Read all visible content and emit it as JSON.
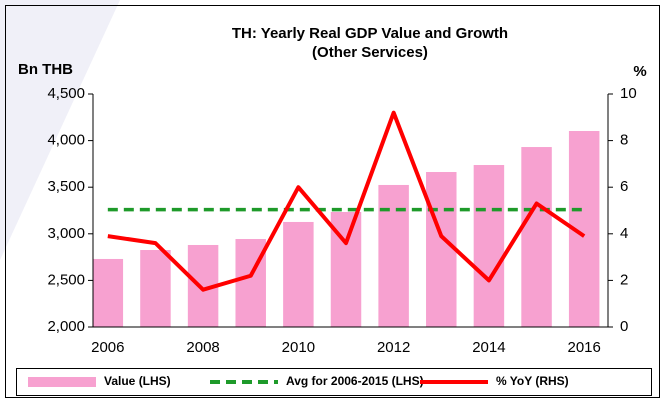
{
  "chart_data": {
    "type": "bar",
    "title": "TH: Yearly Real GDP Value and Growth",
    "subtitle": "(Other Services)",
    "ylabel": "Bn THB",
    "y2label": "%",
    "categories": [
      "2006",
      null,
      "2008",
      null,
      "2010",
      null,
      "2012",
      null,
      "2014",
      null,
      "2016"
    ],
    "series": [
      {
        "name": "Value (LHS)",
        "type": "bar",
        "color": "#f7a1d0",
        "values": [
          2730,
          2826,
          2880,
          2944,
          3127,
          3234,
          3524,
          3663,
          3738,
          3931,
          4103
        ]
      },
      {
        "name": "Avg for 2006-2015 (LHS)",
        "type": "line",
        "dashed": true,
        "color": "#1e9a2a",
        "values": [
          3260,
          3260,
          3260,
          3260,
          3260,
          3260,
          3260,
          3260,
          3260,
          3260,
          3260
        ]
      },
      {
        "name": "% YoY (RHS)",
        "type": "line",
        "axis": "y2",
        "color": "#ff0000",
        "values": [
          3.9,
          3.6,
          1.6,
          2.2,
          6.0,
          3.6,
          9.2,
          3.9,
          2.0,
          5.3,
          3.9
        ]
      }
    ],
    "ylim": [
      2000,
      4500
    ],
    "yticks": [
      {
        "value": 2000,
        "label": "2,000"
      },
      {
        "value": 2500,
        "label": "2,500"
      },
      {
        "value": 3000,
        "label": "3,000"
      },
      {
        "value": 3500,
        "label": "3,500"
      },
      {
        "value": 4000,
        "label": "4,000"
      },
      {
        "value": 4500,
        "label": "4,500"
      }
    ],
    "y2lim": [
      0,
      10
    ],
    "y2ticks": [
      0,
      2,
      4,
      6,
      8,
      10
    ],
    "legend": "bottom"
  }
}
